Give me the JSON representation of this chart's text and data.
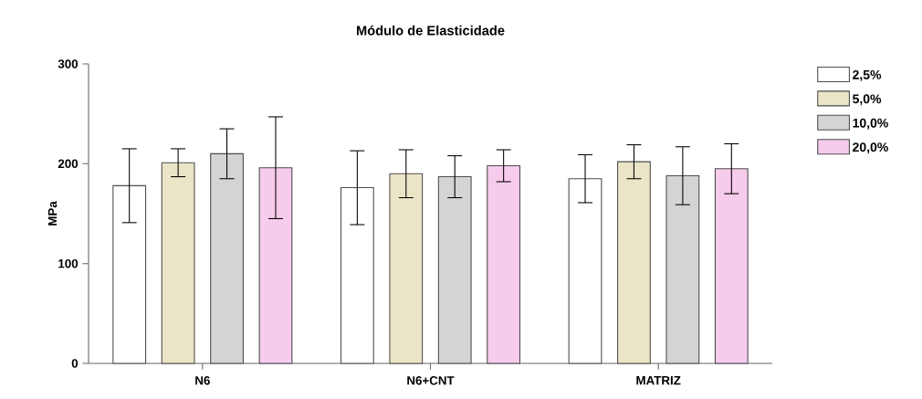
{
  "chart_data": {
    "type": "bar",
    "title": "Módulo de Elasticidade",
    "ylabel": "MPa",
    "categories": [
      "N6",
      "N6+CNT",
      "MATRIZ"
    ],
    "ylim": [
      0,
      300
    ],
    "yticks": [
      0,
      100,
      200,
      300
    ],
    "legend": "right",
    "series": [
      {
        "name": "2,5%",
        "color": "#ffffff",
        "values": [
          178,
          176,
          185
        ],
        "errors": [
          37,
          37,
          24
        ]
      },
      {
        "name": "5,0%",
        "color": "#ebe5c8",
        "values": [
          201,
          190,
          202
        ],
        "errors": [
          14,
          24,
          17
        ]
      },
      {
        "name": "10,0%",
        "color": "#d4d4d4",
        "values": [
          210,
          187,
          188
        ],
        "errors": [
          25,
          21,
          29
        ]
      },
      {
        "name": "20,0%",
        "color": "#f7cbec",
        "values": [
          196,
          198,
          195
        ],
        "errors": [
          51,
          16,
          25
        ]
      }
    ]
  }
}
